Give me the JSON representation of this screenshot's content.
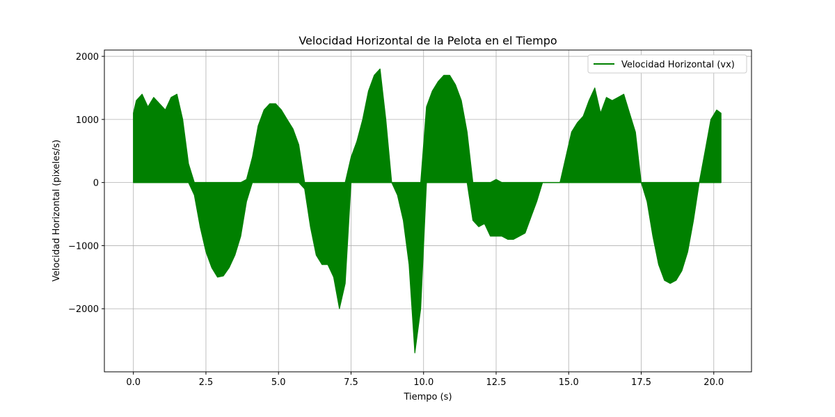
{
  "chart_data": {
    "type": "line",
    "title": "Velocidad Horizontal de la Pelota en el Tiempo",
    "xlabel": "Tiempo (s)",
    "ylabel": "Velocidad Horizontal (pixeles/s)",
    "xlim": [
      -1.0,
      21.3
    ],
    "ylim": [
      -3000,
      2100
    ],
    "xticks": [
      0.0,
      2.5,
      5.0,
      7.5,
      10.0,
      12.5,
      15.0,
      17.5,
      20.0
    ],
    "xtick_labels": [
      "0.0",
      "2.5",
      "5.0",
      "7.5",
      "10.0",
      "12.5",
      "15.0",
      "17.5",
      "20.0"
    ],
    "yticks": [
      -2000,
      -1000,
      0,
      1000,
      2000
    ],
    "ytick_labels": [
      "−2000",
      "−1000",
      "0",
      "1000",
      "2000"
    ],
    "grid": true,
    "legend_position": "top-right",
    "color": "#008000",
    "series": [
      {
        "name": "Velocidad Horizontal (vx)",
        "x": [
          0.0,
          0.1,
          0.3,
          0.5,
          0.7,
          0.9,
          1.1,
          1.3,
          1.5,
          1.7,
          1.9,
          2.1,
          2.3,
          2.5,
          2.7,
          2.9,
          3.1,
          3.3,
          3.5,
          3.7,
          3.9,
          4.1,
          4.3,
          4.5,
          4.7,
          4.9,
          5.1,
          5.3,
          5.5,
          5.7,
          5.9,
          6.1,
          6.3,
          6.5,
          6.7,
          6.9,
          7.1,
          7.3,
          7.5,
          7.7,
          7.9,
          8.1,
          8.3,
          8.5,
          8.7,
          8.9,
          9.1,
          9.3,
          9.5,
          9.7,
          9.9,
          10.1,
          10.3,
          10.5,
          10.7,
          10.9,
          11.1,
          11.3,
          11.5,
          11.7,
          11.9,
          12.1,
          12.3,
          12.5,
          12.7,
          12.9,
          13.1,
          13.3,
          13.5,
          13.7,
          13.9,
          14.1,
          14.3,
          14.5,
          14.7,
          14.9,
          15.1,
          15.3,
          15.5,
          15.7,
          15.9,
          16.1,
          16.3,
          16.5,
          16.7,
          16.9,
          17.1,
          17.3,
          17.5,
          17.7,
          17.9,
          18.1,
          18.3,
          18.5,
          18.7,
          18.9,
          19.1,
          19.3,
          19.5,
          19.7,
          19.9,
          20.1,
          20.25
        ],
        "upper": [
          1100,
          1300,
          1400,
          1200,
          1350,
          1250,
          1150,
          1350,
          1400,
          1000,
          300,
          0,
          0,
          0,
          0,
          0,
          0,
          0,
          0,
          0,
          50,
          400,
          900,
          1150,
          1250,
          1250,
          1150,
          1000,
          850,
          600,
          0,
          0,
          0,
          0,
          0,
          0,
          0,
          0,
          400,
          650,
          1000,
          1450,
          1700,
          1800,
          1000,
          0,
          0,
          0,
          0,
          0,
          0,
          1200,
          1450,
          1600,
          1700,
          1700,
          1550,
          1300,
          800,
          0,
          0,
          0,
          0,
          50,
          0,
          0,
          0,
          0,
          0,
          0,
          0,
          0,
          0,
          0,
          0,
          400,
          800,
          950,
          1050,
          1300,
          1500,
          1100,
          1350,
          1300,
          1350,
          1400,
          1100,
          800,
          0,
          0,
          0,
          0,
          0,
          0,
          0,
          0,
          0,
          0,
          0,
          500,
          1000,
          1150,
          1100
        ],
        "lower": [
          0,
          0,
          0,
          0,
          0,
          0,
          0,
          0,
          0,
          0,
          0,
          -200,
          -700,
          -1100,
          -1350,
          -1500,
          -1480,
          -1350,
          -1150,
          -850,
          -300,
          0,
          0,
          0,
          0,
          0,
          0,
          0,
          0,
          0,
          -100,
          -700,
          -1150,
          -1300,
          -1300,
          -1500,
          -2000,
          -1600,
          0,
          0,
          0,
          0,
          0,
          0,
          0,
          0,
          -200,
          -600,
          -1300,
          -2700,
          -2000,
          0,
          0,
          0,
          0,
          0,
          0,
          0,
          0,
          -600,
          -700,
          -650,
          -850,
          -850,
          -850,
          -900,
          -900,
          -850,
          -800,
          -550,
          -300,
          0,
          0,
          0,
          0,
          0,
          0,
          0,
          0,
          0,
          0,
          0,
          0,
          0,
          0,
          0,
          0,
          0,
          0,
          -300,
          -850,
          -1300,
          -1550,
          -1600,
          -1550,
          -1400,
          -1100,
          -600,
          0,
          0,
          0,
          0,
          0
        ]
      }
    ]
  }
}
